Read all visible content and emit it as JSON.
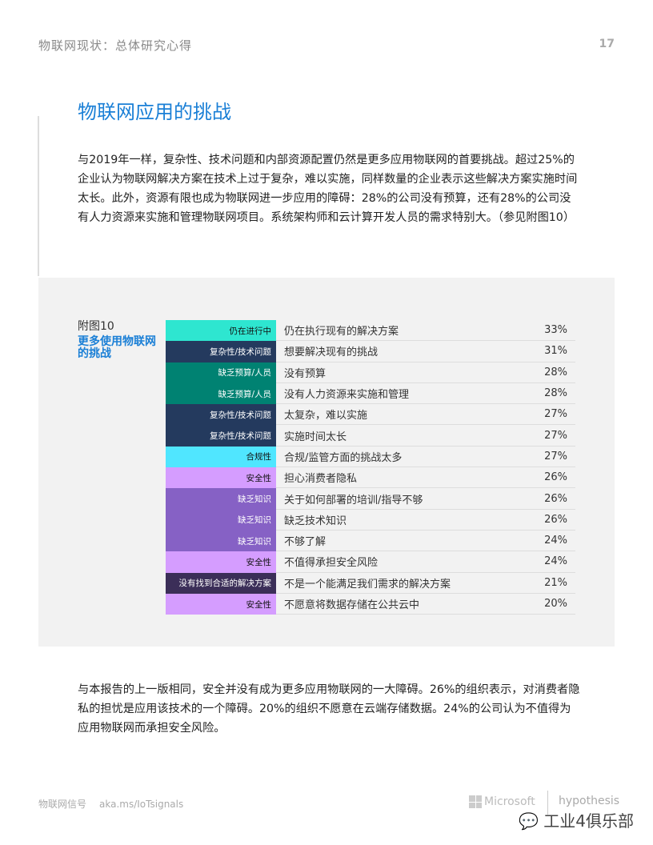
{
  "header": {
    "section": "物联网现状：总体研究心得",
    "page": "17"
  },
  "title": "物联网应用的挑战",
  "intro": "与2019年一样，复杂性、技术问题和内部资源配置仍然是更多应用物联网的首要挑战。超过25%的企业认为物联网解决方案在技术上过于复杂，难以实施，同样数量的企业表示这些解决方案实施时间太长。此外，资源有限也成为物联网进一步应用的障碍：28%的公司没有预算，还有28%的公司没有人力资源来实施和管理物联网项目。系统架构师和云计算开发人员的需求特别大。（参见附图10）",
  "figure": {
    "number": "附图10",
    "title": "更多使用物联网的挑战",
    "rows": [
      {
        "category": "仍在进行中",
        "label": "仍在执行现有的解决方案",
        "value": "33%",
        "bg": "#2ee6d0",
        "fg": "#111"
      },
      {
        "category": "复杂性/技术问题",
        "label": "想要解决现有的挑战",
        "value": "31%",
        "bg": "#243a5e",
        "fg": "#fff"
      },
      {
        "category": "缺乏预算/人员",
        "label": "没有预算",
        "value": "28%",
        "bg": "#008272",
        "fg": "#fff"
      },
      {
        "category": "缺乏预算/人员",
        "label": "没有人力资源来实施和管理",
        "value": "28%",
        "bg": "#008272",
        "fg": "#fff"
      },
      {
        "category": "复杂性/技术问题",
        "label": "太复杂，难以实施",
        "value": "27%",
        "bg": "#243a5e",
        "fg": "#fff"
      },
      {
        "category": "复杂性/技术问题",
        "label": "实施时间太长",
        "value": "27%",
        "bg": "#243a5e",
        "fg": "#fff"
      },
      {
        "category": "合规性",
        "label": "合规/监管方面的挑战太多",
        "value": "27%",
        "bg": "#50e6ff",
        "fg": "#111"
      },
      {
        "category": "安全性",
        "label": "担心消费者隐私",
        "value": "26%",
        "bg": "#d59dff",
        "fg": "#111"
      },
      {
        "category": "缺乏知识",
        "label": "关于如何部署的培训/指导不够",
        "value": "26%",
        "bg": "#8661c5",
        "fg": "#fff"
      },
      {
        "category": "缺乏知识",
        "label": "缺乏技术知识",
        "value": "26%",
        "bg": "#8661c5",
        "fg": "#fff"
      },
      {
        "category": "缺乏知识",
        "label": "不够了解",
        "value": "24%",
        "bg": "#8661c5",
        "fg": "#fff"
      },
      {
        "category": "安全性",
        "label": "不值得承担安全风险",
        "value": "24%",
        "bg": "#d59dff",
        "fg": "#111"
      },
      {
        "category": "没有找到合适的解决方案",
        "label": "不是一个能满足我们需求的解决方案",
        "value": "21%",
        "bg": "#3b2e58",
        "fg": "#fff"
      },
      {
        "category": "安全性",
        "label": "不愿意将数据存储在公共云中",
        "value": "20%",
        "bg": "#d59dff",
        "fg": "#111"
      }
    ]
  },
  "outro": "与本报告的上一版相同，安全并没有成为更多应用物联网的一大障碍。26%的组织表示，对消费者隐私的担忧是应用该技术的一个障碍。20%的组织不愿意在云端存储数据。24%的公司认为不值得为应用物联网而承担安全风险。",
  "footer": {
    "name": "物联网信号",
    "link": "aka.ms/IoTsignals",
    "brand1": "Microsoft",
    "brand2": "hypothesis",
    "watermark": "工业4俱乐部"
  }
}
